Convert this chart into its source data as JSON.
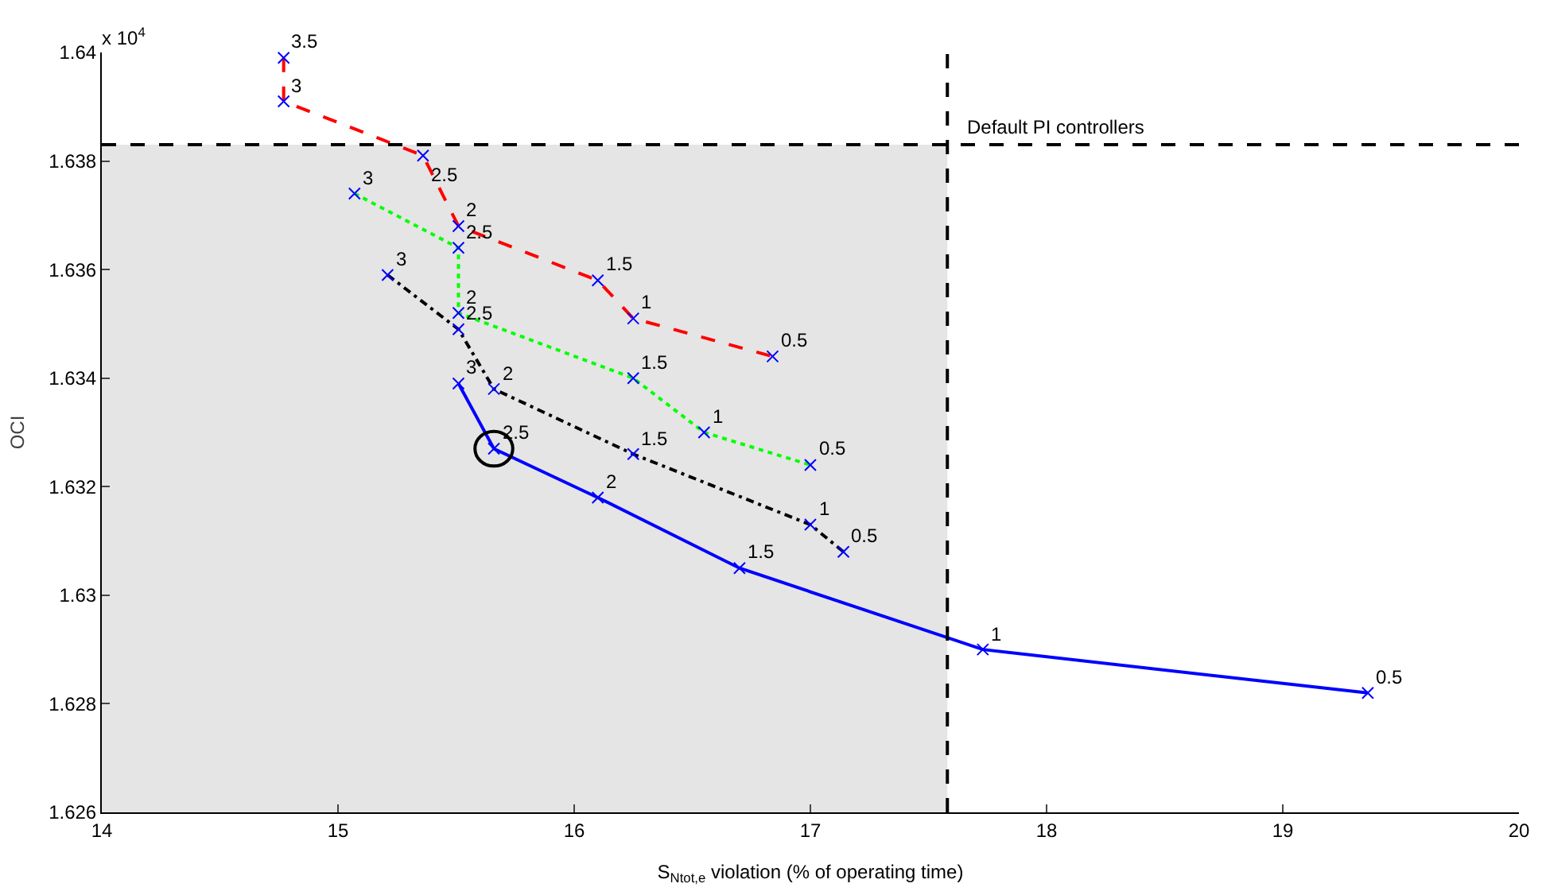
{
  "chart_data": {
    "type": "line",
    "xlabel": "S$_{Ntot,e}$ violation (% of operating time)",
    "ylabel": "OCI",
    "annotations": [
      "x 10$^{4}$",
      {
        "text": "3.5",
        "x": 14.77,
        "y": 1.6399
      },
      {
        "text": "3",
        "x": 14.77,
        "y": 1.6391
      },
      {
        "text": "2.5",
        "x": 15.36,
        "y": 1.6381
      },
      {
        "text": "2",
        "x": 15.51,
        "y": 1.6368
      },
      {
        "text": "1.5",
        "x": 16.1,
        "y": 1.6358
      },
      {
        "text": "1",
        "x": 16.25,
        "y": 1.6351
      },
      {
        "text": "0.5",
        "x": 16.84,
        "y": 1.6344
      },
      {
        "text": "3",
        "x": 15.07,
        "y": 1.6374
      },
      {
        "text": "2.5",
        "x": 15.51,
        "y": 1.6364
      },
      {
        "text": "2",
        "x": 15.51,
        "y": 1.6352
      },
      {
        "text": "1.5",
        "x": 16.25,
        "y": 1.634
      },
      {
        "text": "1",
        "x": 16.55,
        "y": 1.633
      },
      {
        "text": "0.5",
        "x": 17.0,
        "y": 1.6324
      },
      {
        "text": "3",
        "x": 15.21,
        "y": 1.6359
      },
      {
        "text": "2.5",
        "x": 15.51,
        "y": 1.6349
      },
      {
        "text": "2",
        "x": 15.66,
        "y": 1.6338
      },
      {
        "text": "1.5",
        "x": 16.25,
        "y": 1.6326
      },
      {
        "text": "1",
        "x": 17.0,
        "y": 1.6313
      },
      {
        "text": "0.5",
        "x": 17.14,
        "y": 1.6308
      },
      {
        "text": "3",
        "x": 15.51,
        "y": 1.6339
      },
      {
        "text": "2.5",
        "x": 15.66,
        "y": 1.6327
      },
      {
        "text": "2",
        "x": 16.1,
        "y": 1.6318
      },
      {
        "text": "1.5",
        "x": 16.7,
        "y": 1.6305
      },
      {
        "text": "1",
        "x": 17.73,
        "y": 1.629
      },
      {
        "text": "0.5",
        "x": 19.36,
        "y": 1.6282
      }
    ],
    "marker": "cross",
    "grid": false,
    "legend": false,
    "xlim": [
      14,
      20
    ],
    "xticks": [
      14,
      15,
      16,
      17,
      18,
      19,
      20
    ],
    "ylim": [
      1.626,
      1.64
    ],
    "yticks": [
      1.626,
      1.628,
      1.63,
      1.632,
      1.634,
      1.636,
      1.638,
      1.64
    ],
    "series": [
      {
        "color": "#ff0000",
        "line_style": "dashed",
        "x": [
          14.77,
          14.77,
          15.36,
          15.51,
          16.1,
          16.25,
          16.84
        ],
        "values": [
          1.6399,
          1.6391,
          1.6381,
          1.6368,
          1.6358,
          1.6351,
          1.6344
        ]
      },
      {
        "color": "#00ff00",
        "line_style": "dotted",
        "x": [
          15.07,
          15.51,
          15.51,
          16.25,
          16.55,
          17.0
        ],
        "values": [
          1.6374,
          1.6364,
          1.6352,
          1.634,
          1.633,
          1.6324
        ]
      },
      {
        "color": "#000000",
        "line_style": "dashdot",
        "x": [
          15.21,
          15.51,
          15.66,
          16.25,
          17.0,
          17.14
        ],
        "values": [
          1.6359,
          1.6349,
          1.6338,
          1.6326,
          1.6313,
          1.6308
        ]
      },
      {
        "color": "#0000ff",
        "line_style": "solid",
        "x": [
          15.51,
          15.66,
          16.1,
          16.7,
          17.73,
          19.36
        ],
        "values": [
          1.6339,
          1.6327,
          1.6318,
          1.6305,
          1.629,
          1.6282
        ]
      }
    ],
    "ref_lines": [
      {
        "axis": "x",
        "value": 17.58,
        "color": "#000000",
        "line_style": "dashed"
      },
      {
        "axis": "y",
        "value": 1.6383,
        "label": "Default PI controllers",
        "color": "#000000",
        "line_style": "dashed"
      }
    ],
    "bands": [
      {
        "axis": "x",
        "from": 14,
        "to": 17.58,
        "color": "#e5e5e5"
      }
    ]
  }
}
